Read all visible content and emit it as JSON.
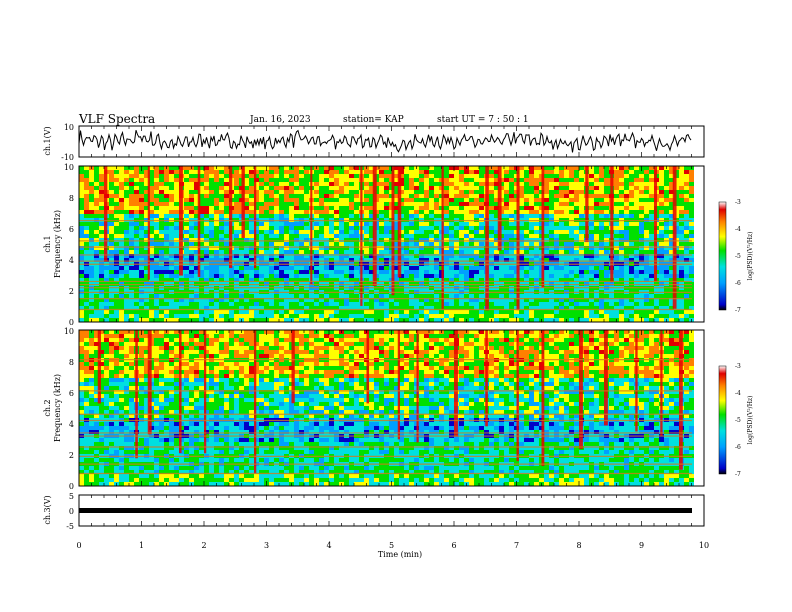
{
  "header": {
    "title": "VLF Spectra",
    "date": "Jan. 16, 2023",
    "station": "station= KAP",
    "start": "start  UT =   7 : 50 : 1"
  },
  "chart_data": [
    {
      "type": "line",
      "panel": "ch1-waveform",
      "ylabel": "ch.1(V)",
      "xlim": [
        0,
        10
      ],
      "ylim": [
        -10,
        10
      ],
      "yticks": [
        "10",
        "-10"
      ],
      "series": [
        {
          "color": "#000000",
          "x": [
            0,
            0.5,
            1,
            1.5,
            2,
            2.5,
            3,
            3.5,
            4,
            4.5,
            5,
            5.5,
            6,
            6.5,
            7,
            7.5,
            8,
            8.5,
            9,
            9.5,
            9.8
          ],
          "y": [
            2,
            -1,
            3,
            -2,
            1,
            0,
            -1,
            2,
            -1,
            1,
            -2,
            0,
            1,
            -1,
            2,
            0,
            -2,
            1,
            0,
            -1,
            1
          ]
        }
      ]
    },
    {
      "type": "heatmap",
      "panel": "ch1-spectrogram",
      "ylabel": "ch.1\nFrequency (kHz)",
      "ylabel_lines": [
        "ch.1",
        "Frequency (kHz)"
      ],
      "xlim": [
        0,
        10
      ],
      "ylim": [
        0,
        10
      ],
      "yticks": [
        "0",
        "2",
        "4",
        "6",
        "8",
        "10"
      ],
      "colorbar": {
        "label": "log(PSD)(V²/Hz)",
        "range": [
          -7,
          -3
        ],
        "ticks": [
          "-3",
          "-4",
          "-5",
          "-6",
          "-7"
        ]
      },
      "horizontal_lines_khz": [
        0.8,
        1.5,
        1.9,
        2.2,
        2.4,
        2.6,
        3.7,
        3.9,
        4.3,
        4.8,
        5.2,
        6.5
      ],
      "burst_times_min": [
        0.4,
        1.1,
        1.6,
        1.9,
        2.4,
        2.6,
        2.8,
        3.7,
        4.5,
        4.7,
        5.0,
        5.1,
        5.8,
        6.5,
        6.7,
        7.0,
        7.4,
        8.1,
        8.5,
        9.2,
        9.5
      ],
      "colormap": [
        "#0000c8",
        "#00a0ff",
        "#00e0e0",
        "#00e000",
        "#ffff00",
        "#ff8000",
        "#e00000"
      ]
    },
    {
      "type": "heatmap",
      "panel": "ch2-spectrogram",
      "ylabel": "ch.2\nFrequency (kHz)",
      "ylabel_lines": [
        "ch.2",
        "Frequency (kHz)"
      ],
      "xlim": [
        0,
        10
      ],
      "ylim": [
        0,
        10
      ],
      "yticks": [
        "0",
        "2",
        "4",
        "6",
        "8",
        "10"
      ],
      "colorbar": {
        "label": "log(PSD)(V²/Hz)",
        "range": [
          -7,
          -3
        ],
        "ticks": [
          "-3",
          "-4",
          "-5",
          "-6",
          "-7"
        ]
      },
      "horizontal_lines_khz": [
        0.8,
        1.4,
        1.9,
        2.5,
        3.2,
        3.4,
        4.2,
        4.6,
        6.1,
        8.1
      ],
      "burst_times_min": [
        0.3,
        0.9,
        1.1,
        1.6,
        2.0,
        2.8,
        3.4,
        4.6,
        5.1,
        5.4,
        6.0,
        6.5,
        7.0,
        7.4,
        8.0,
        8.4,
        8.9,
        9.3,
        9.6
      ],
      "colormap": [
        "#0000c8",
        "#00a0ff",
        "#00e0e0",
        "#00e000",
        "#ffff00",
        "#ff8000",
        "#e00000"
      ]
    },
    {
      "type": "line",
      "panel": "ch3-waveform",
      "ylabel": "ch.3(V)",
      "xlabel": "Time (min)",
      "xlim": [
        0,
        10
      ],
      "ylim": [
        -5,
        5
      ],
      "yticks": [
        "5",
        "0",
        "-5"
      ],
      "xticks": [
        "0",
        "1",
        "2",
        "3",
        "4",
        "5",
        "6",
        "7",
        "8",
        "9",
        "10"
      ],
      "series": [
        {
          "color": "#000000",
          "x": [
            0,
            9.8
          ],
          "y": [
            0,
            0
          ]
        }
      ]
    }
  ]
}
